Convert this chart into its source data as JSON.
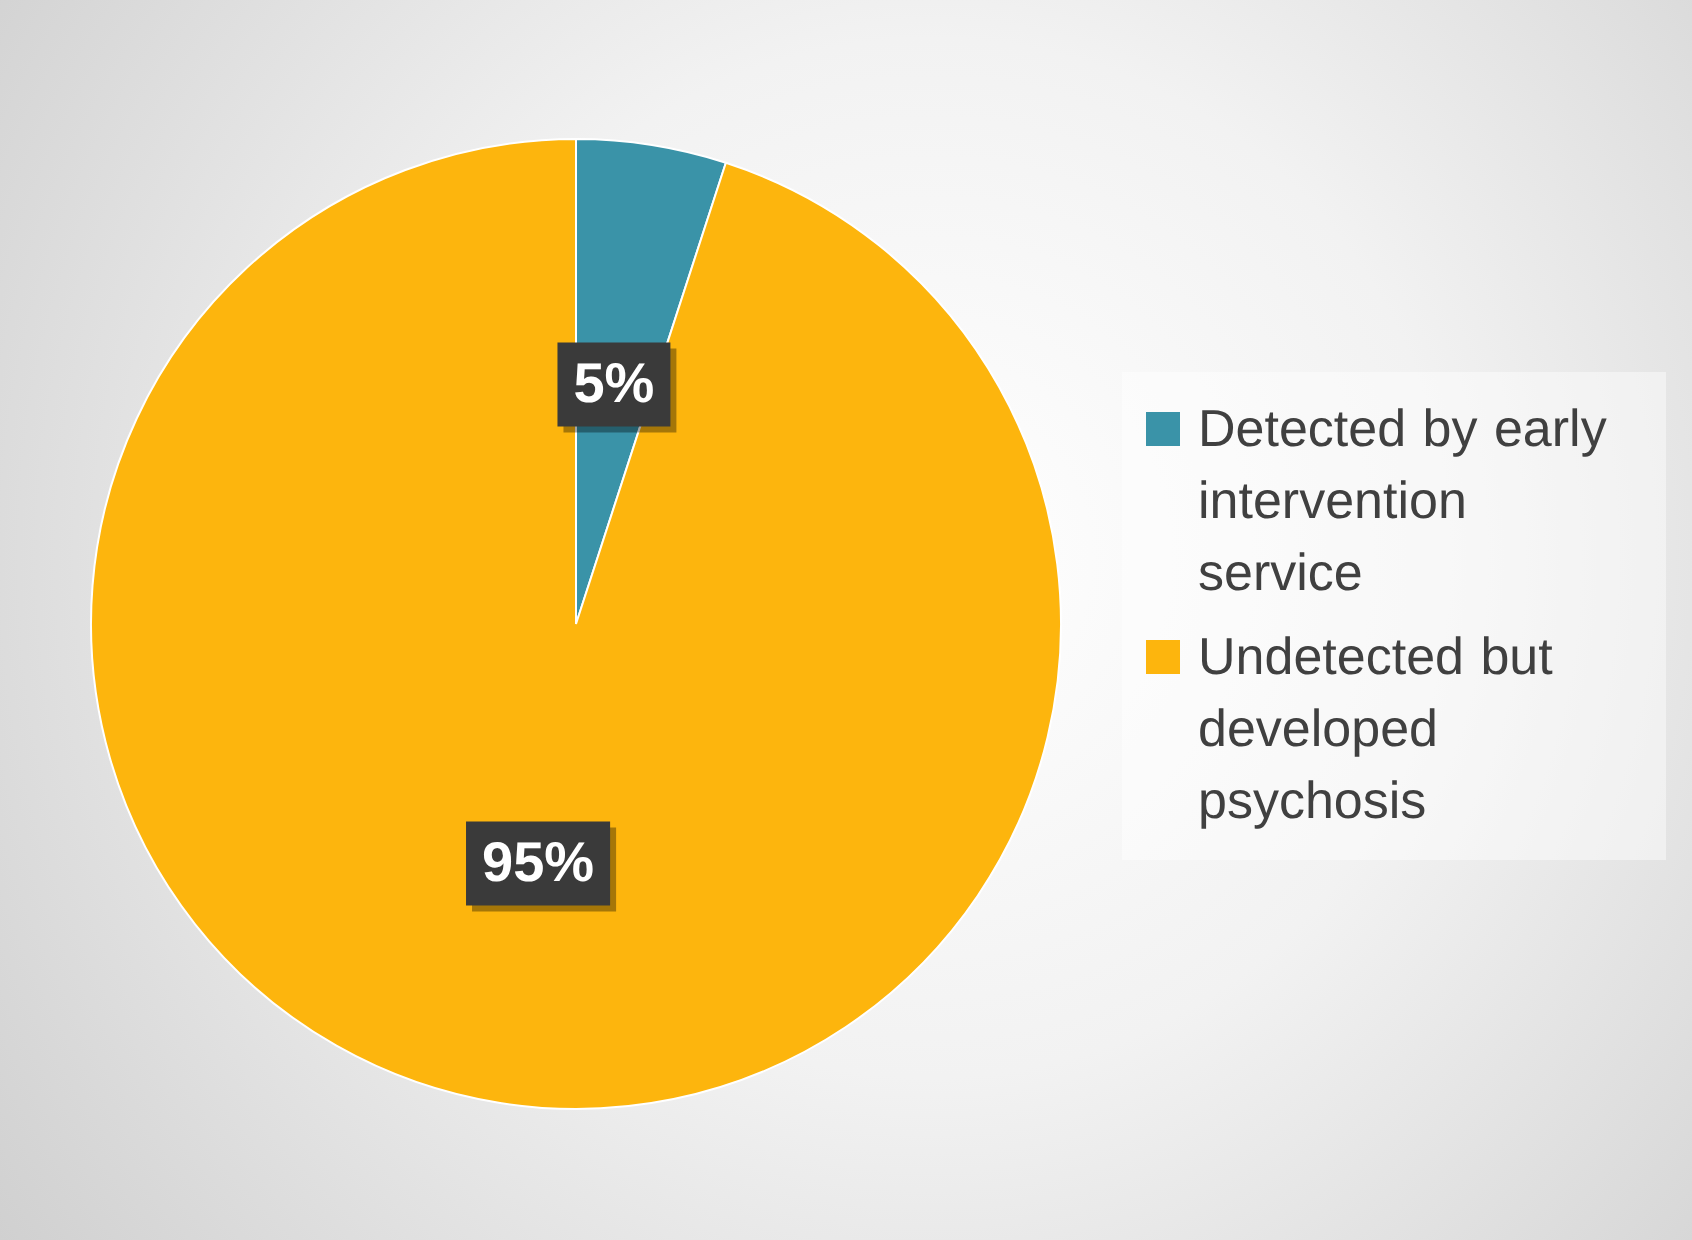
{
  "chart_data": {
    "type": "pie",
    "categories": [
      "Detected by early intervention service",
      "Undetected but developed psychosis"
    ],
    "values": [
      5,
      95
    ],
    "colors": [
      "#3a93a8",
      "#fdb50d"
    ],
    "value_labels": [
      "5%",
      "95%"
    ],
    "legend": "right"
  }
}
